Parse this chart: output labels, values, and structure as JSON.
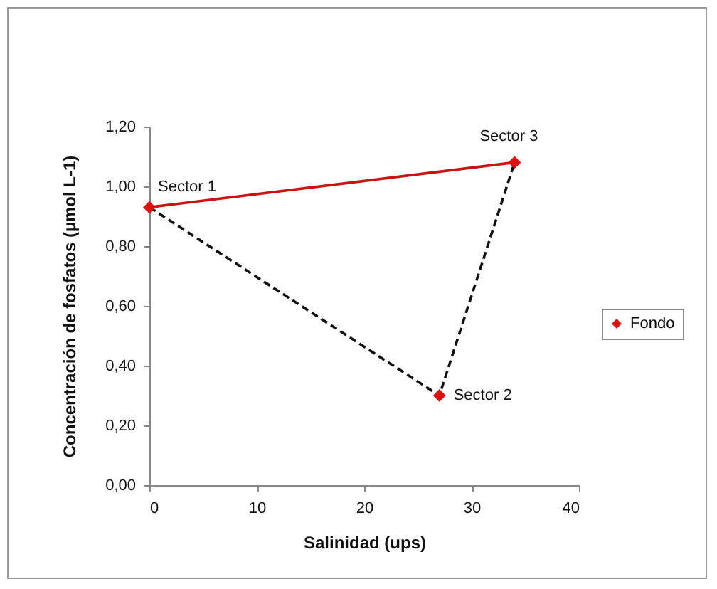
{
  "chart_data": {
    "type": "scatter",
    "xlabel": "Salinidad (ups)",
    "ylabel": "Concentración de fosfatos (µmol L-1)",
    "xlim": [
      0,
      40
    ],
    "xticks": [
      0,
      10,
      20,
      30,
      40
    ],
    "ylim": [
      0,
      1.2
    ],
    "yticks": [
      {
        "value": 0,
        "label": "0,00"
      },
      {
        "value": 0.2,
        "label": "0,20"
      },
      {
        "value": 0.4,
        "label": "0,40"
      },
      {
        "value": 0.6,
        "label": "0,60"
      },
      {
        "value": 0.8,
        "label": "0,80"
      },
      {
        "value": 1.0,
        "label": "1,00"
      },
      {
        "value": 1.2,
        "label": "1,20"
      }
    ],
    "grid": false,
    "legend": "right",
    "series": [
      {
        "type": "line",
        "color": "#cc1111",
        "x": [
          0,
          34
        ],
        "values": [
          0.93,
          1.08
        ],
        "line_style": "solid",
        "marker": "none"
      },
      {
        "type": "line",
        "color": "#111111",
        "x": [
          0,
          27,
          34
        ],
        "values": [
          0.93,
          0.3,
          1.08
        ],
        "line_style": "dashed",
        "marker": "none"
      },
      {
        "name": "Fondo",
        "color": "#dd1111",
        "x": [
          0,
          27,
          34
        ],
        "values": [
          0.93,
          0.3,
          1.08
        ],
        "marker": "diamond"
      }
    ],
    "annotations": [
      {
        "text": "Sector 1",
        "x": 0,
        "y": 0.93
      },
      {
        "text": "Sector 2",
        "x": 27,
        "y": 0.3
      },
      {
        "text": "Sector 3",
        "x": 34,
        "y": 1.08
      }
    ]
  }
}
